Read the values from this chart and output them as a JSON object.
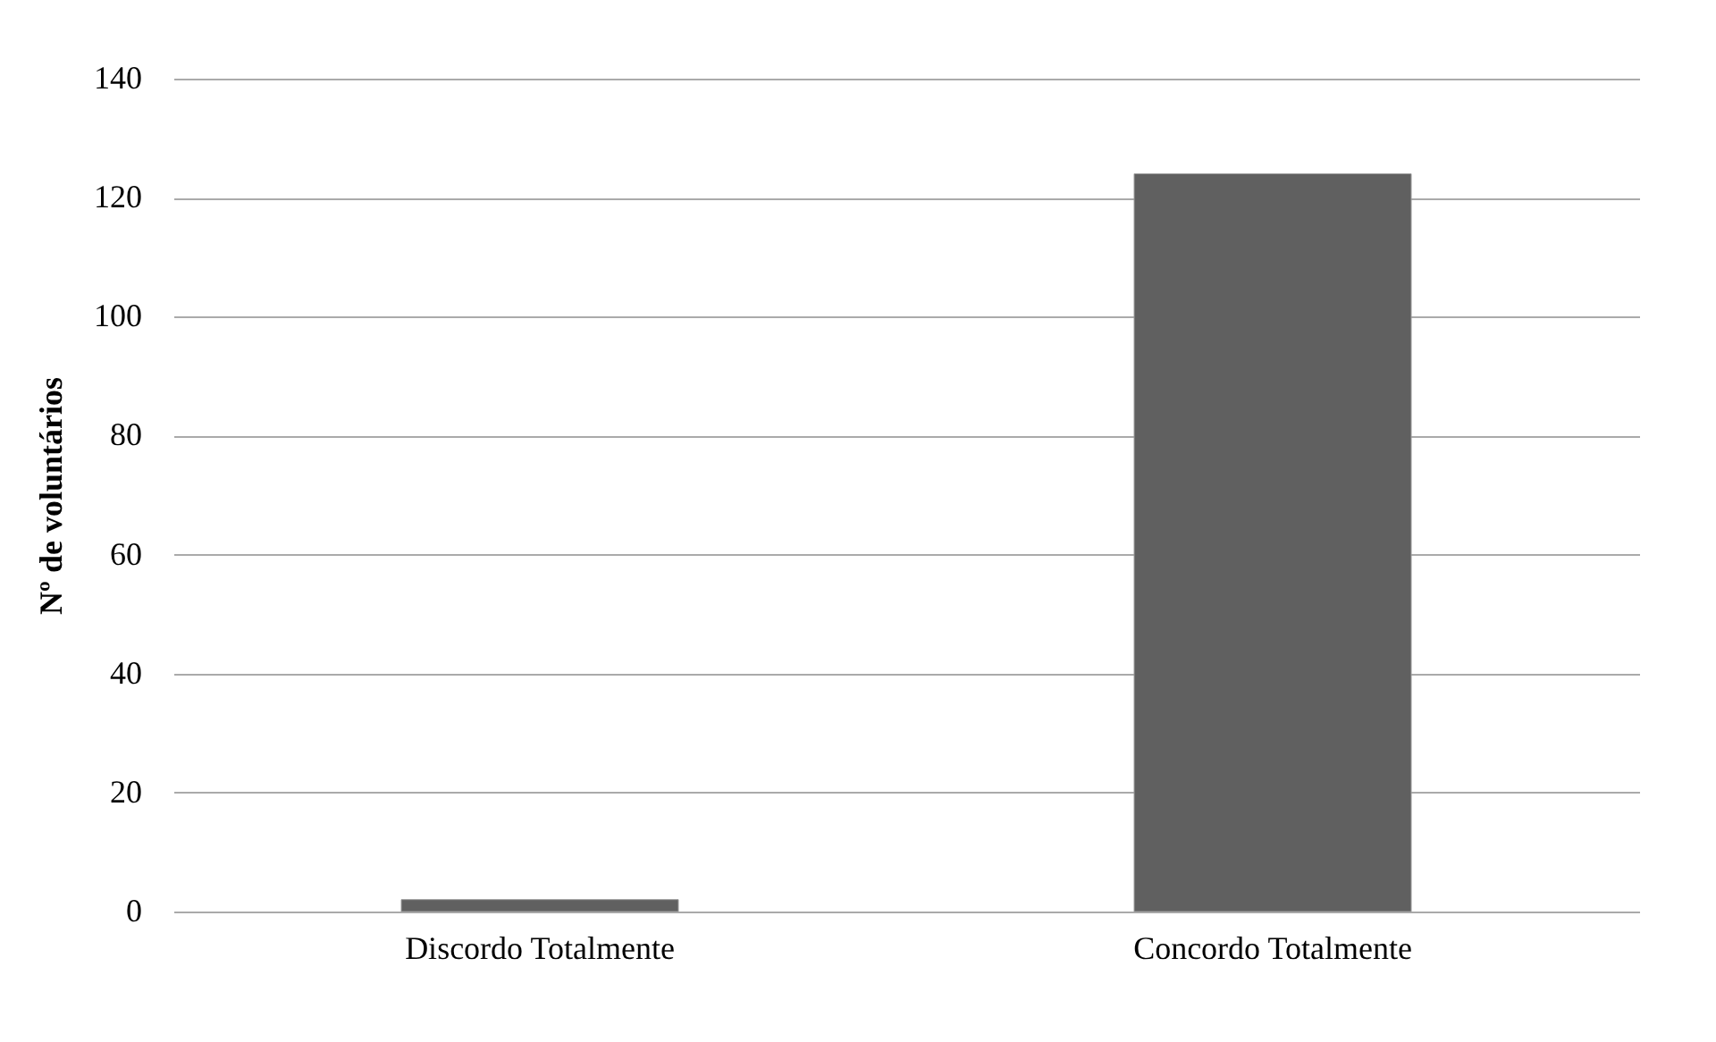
{
  "chart_data": {
    "type": "bar",
    "ylabel": "Nº de voluntários",
    "categories": [
      "Discordo Totalmente",
      "Concordo Totalmente"
    ],
    "values": [
      2,
      124
    ],
    "color": "#606060",
    "ylim": [
      0,
      140
    ],
    "yticks": [
      0,
      20,
      40,
      60,
      80,
      100,
      120,
      140
    ],
    "grid": "y"
  }
}
